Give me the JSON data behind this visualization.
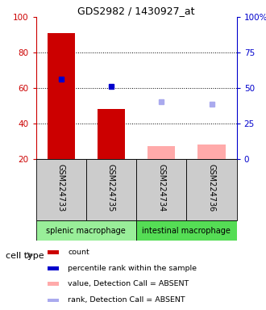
{
  "title": "GDS2982 / 1430927_at",
  "samples": [
    "GSM224733",
    "GSM224735",
    "GSM224734",
    "GSM224736"
  ],
  "x_positions": [
    1,
    2,
    3,
    4
  ],
  "bar_width": 0.55,
  "red_bars": [
    91,
    48,
    0,
    0
  ],
  "pink_bars": [
    0,
    0,
    27,
    28
  ],
  "blue_squares": [
    65,
    61,
    0,
    0
  ],
  "lavender_squares": [
    0,
    0,
    52,
    51
  ],
  "ylim_left": [
    20,
    100
  ],
  "ylim_right": [
    0,
    100
  ],
  "yticks_left": [
    20,
    40,
    60,
    80,
    100
  ],
  "yticks_right": [
    0,
    25,
    50,
    75,
    100
  ],
  "ytick_right_labels": [
    "0",
    "25",
    "50",
    "75",
    "100%"
  ],
  "cell_types": [
    {
      "label": "splenic macrophage",
      "cols": [
        0,
        1
      ],
      "color": "#99ee99"
    },
    {
      "label": "intestinal macrophage",
      "cols": [
        2,
        3
      ],
      "color": "#55dd55"
    }
  ],
  "legend_items": [
    {
      "color": "#cc0000",
      "label": "count"
    },
    {
      "color": "#0000cc",
      "label": "percentile rank within the sample"
    },
    {
      "color": "#ffaaaa",
      "label": "value, Detection Call = ABSENT"
    },
    {
      "color": "#aaaaee",
      "label": "rank, Detection Call = ABSENT"
    }
  ],
  "bar_bottom": 20,
  "red_color": "#cc0000",
  "pink_color": "#ffaaaa",
  "blue_color": "#0000cc",
  "lavender_color": "#aaaaee",
  "bg_gray": "#cccccc",
  "cell_type_label": "cell type",
  "left_axis_color": "#cc0000",
  "right_axis_color": "#0000cc"
}
